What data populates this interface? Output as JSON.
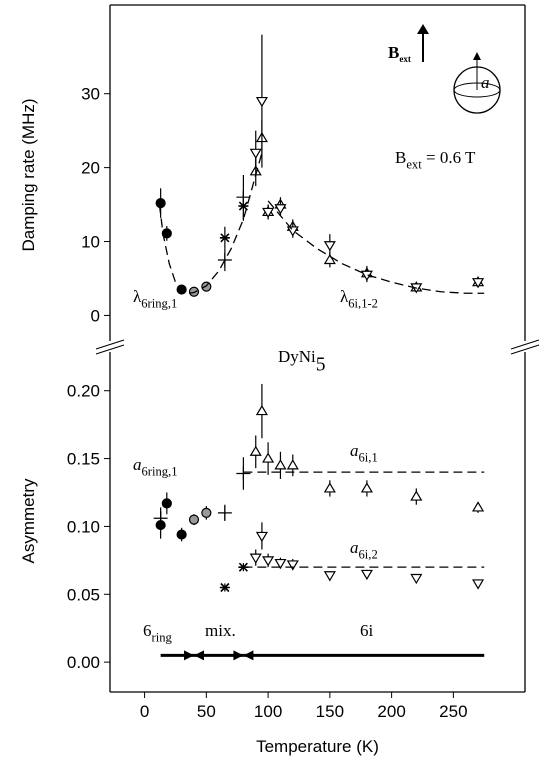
{
  "chart_data": [
    {
      "type": "scatter",
      "title": {
        "text": "DyNi",
        "sub": "5"
      },
      "y_label": "Damping rate (MHz)",
      "xlim": [
        -28,
        308
      ],
      "ylim": [
        -4,
        42
      ],
      "yticks": [
        0,
        10,
        20,
        30
      ],
      "series": [
        {
          "marker": "circle",
          "color": "#000000",
          "x": [
            13,
            18,
            30
          ],
          "values": [
            15.2,
            11.1,
            3.5
          ],
          "errors": [
            2,
            1,
            0.3
          ]
        },
        {
          "marker": "circle",
          "color": "#999999",
          "x": [
            40,
            50
          ],
          "values": [
            3.2,
            3.9
          ],
          "errors": [
            0.5,
            0.5
          ]
        },
        {
          "marker": "asterisk",
          "color": "#000000",
          "x": [
            65,
            80
          ],
          "values": [
            10.5,
            14.8
          ],
          "errors": [
            1.5,
            2
          ]
        },
        {
          "marker": "plus",
          "color": "#000000",
          "x": [
            65,
            80
          ],
          "values": [
            7.5,
            16
          ],
          "errors": [
            1.5,
            3
          ]
        },
        {
          "marker": "triangle-up",
          "color": "#000000",
          "x": [
            90,
            95,
            100,
            110,
            120,
            150,
            180,
            220,
            270
          ],
          "values": [
            19.5,
            24,
            14,
            15,
            12,
            7.5,
            5.7,
            3.8,
            4.5
          ],
          "errors": [
            2,
            2.5,
            1,
            1,
            1,
            1,
            1,
            0.5,
            0.5
          ]
        },
        {
          "marker": "triangle-down",
          "color": "#000000",
          "x": [
            90,
            95,
            100,
            110,
            120,
            150,
            180,
            220,
            270
          ],
          "values": [
            22,
            29,
            14,
            14.5,
            11.5,
            9.5,
            5.5,
            3.8,
            4.5
          ],
          "errors": [
            3,
            9,
            1,
            1,
            1,
            1.5,
            1,
            0.5,
            0.5
          ]
        },
        {
          "marker": "dashed-line",
          "color": "#000000",
          "x": [
            12,
            15,
            20,
            25,
            30,
            35,
            40,
            50,
            60,
            70,
            80,
            90,
            95
          ],
          "values": [
            15,
            11,
            7,
            4.5,
            3.3,
            3,
            3.1,
            4,
            6,
            9,
            13,
            19,
            22
          ]
        },
        {
          "marker": "dashed-line",
          "color": "#000000",
          "x": [
            100,
            110,
            120,
            140,
            160,
            180,
            200,
            220,
            240,
            260,
            275
          ],
          "values": [
            15.5,
            13.5,
            11.5,
            9,
            7,
            5.5,
            4.5,
            3.7,
            3.2,
            3,
            3
          ]
        }
      ],
      "annotations": [
        {
          "text": "λ",
          "sub": "6ring,1"
        },
        {
          "text": "λ",
          "sub": "6i,1-2"
        },
        {
          "text": "B",
          "sub": "ext"
        },
        {
          "text": "B",
          "sub": "ext",
          "rest": " = 0.6 T"
        },
        {
          "text": "a"
        }
      ]
    },
    {
      "type": "scatter",
      "y_label": "Asymmetry",
      "x_label": "Temperature (K)",
      "xlim": [
        -28,
        308
      ],
      "ylim": [
        -0.022,
        0.23
      ],
      "xticks": [
        0,
        50,
        100,
        150,
        200,
        250
      ],
      "yticks": [
        {
          "value": 0,
          "label": "0.00"
        },
        {
          "value": 0.05,
          "label": "0.05"
        },
        {
          "value": 0.1,
          "label": "0.10"
        },
        {
          "value": 0.15,
          "label": "0.15"
        },
        {
          "value": 0.2,
          "label": "0.20"
        }
      ],
      "series": [
        {
          "marker": "circle",
          "color": "#000000",
          "x": [
            13,
            18,
            30
          ],
          "values": [
            0.101,
            0.117,
            0.094
          ],
          "errors": [
            0.01,
            0.008,
            0.005
          ]
        },
        {
          "marker": "circle",
          "color": "#999999",
          "x": [
            40,
            50
          ],
          "values": [
            0.105,
            0.11
          ],
          "errors": [
            0.004,
            0.005
          ]
        },
        {
          "marker": "plus",
          "color": "#000000",
          "x": [
            13,
            65,
            80
          ],
          "values": [
            0.106,
            0.11,
            0.139
          ],
          "errors": [
            0.008,
            0.006,
            0.012
          ]
        },
        {
          "marker": "asterisk",
          "color": "#000000",
          "x": [
            65,
            80
          ],
          "values": [
            0.055,
            0.07
          ],
          "errors": [
            0.003,
            0.003
          ]
        },
        {
          "marker": "triangle-up",
          "color": "#000000",
          "x": [
            90,
            95,
            100,
            110,
            120,
            150,
            180,
            220,
            270
          ],
          "values": [
            0.155,
            0.185,
            0.15,
            0.145,
            0.145,
            0.128,
            0.128,
            0.122,
            0.114
          ],
          "errors": [
            0.012,
            0.02,
            0.012,
            0.01,
            0.008,
            0.006,
            0.006,
            0.006,
            0.004
          ]
        },
        {
          "marker": "triangle-down",
          "color": "#000000",
          "x": [
            90,
            95,
            100,
            110,
            120,
            150,
            180,
            220,
            270
          ],
          "values": [
            0.077,
            0.093,
            0.075,
            0.073,
            0.072,
            0.064,
            0.065,
            0.062,
            0.058
          ],
          "errors": [
            0.006,
            0.01,
            0.005,
            0.004,
            0.004,
            0.003,
            0.003,
            0.003,
            0.003
          ]
        },
        {
          "marker": "dashed-line",
          "color": "#000000",
          "x": [
            80,
            275
          ],
          "values": [
            0.14,
            0.14
          ]
        },
        {
          "marker": "dashed-line",
          "color": "#000000",
          "x": [
            80,
            275
          ],
          "values": [
            0.07,
            0.07
          ]
        }
      ],
      "annotations": [
        {
          "text": "a",
          "sub": "6ring,1"
        },
        {
          "text": "a",
          "sub": "6i,1"
        },
        {
          "text": "a",
          "sub": "6i,2"
        }
      ],
      "phases": {
        "y": 0.005,
        "ranges": [
          {
            "label": {
              "text": "6",
              "sub": "ring"
            },
            "x": [
              13,
              40
            ]
          },
          {
            "label": {
              "text": "mix."
            },
            "x": [
              40,
              80
            ]
          },
          {
            "label": {
              "text": "6i"
            },
            "x": [
              80,
              275
            ]
          }
        ]
      }
    }
  ]
}
